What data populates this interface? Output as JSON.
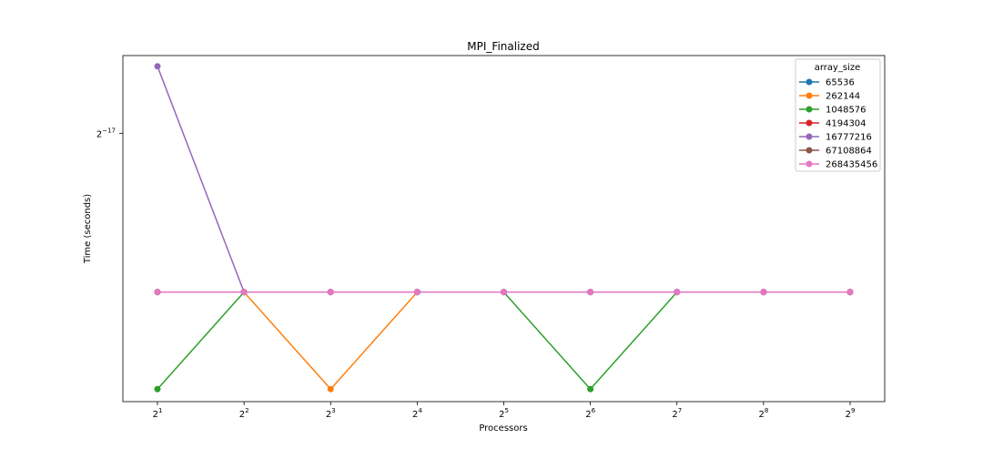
{
  "chart_data": {
    "type": "line",
    "title": "MPI_Finalized",
    "xlabel": "Processors",
    "ylabel": "Time (seconds)",
    "x": [
      2,
      4,
      8,
      16,
      32,
      64,
      128,
      256,
      512
    ],
    "x_tick_labels": [
      {
        "base": "2",
        "exp": "1"
      },
      {
        "base": "2",
        "exp": "2"
      },
      {
        "base": "2",
        "exp": "3"
      },
      {
        "base": "2",
        "exp": "4"
      },
      {
        "base": "2",
        "exp": "5"
      },
      {
        "base": "2",
        "exp": "6"
      },
      {
        "base": "2",
        "exp": "7"
      },
      {
        "base": "2",
        "exp": "8"
      },
      {
        "base": "2",
        "exp": "9"
      }
    ],
    "x_scale": "log2",
    "y_scale": "log2",
    "y_ticks": [
      {
        "value": 7.62939453125e-06,
        "base": "2",
        "exp": "−17"
      }
    ],
    "ylim": [
      3.45e-06,
      9.6e-06
    ],
    "grid": false,
    "legend": {
      "title": "array_size",
      "placement": "top-right"
    },
    "series": [
      {
        "name": "65536",
        "color": "#1f77b4",
        "values": [
          4.77e-06,
          4.77e-06,
          4.77e-06,
          4.77e-06,
          4.77e-06,
          4.77e-06,
          4.77e-06,
          4.77e-06,
          4.77e-06
        ]
      },
      {
        "name": "262144",
        "color": "#ff7f0e",
        "values": [
          4.77e-06,
          4.77e-06,
          3.58e-06,
          4.77e-06,
          4.77e-06,
          4.77e-06,
          4.77e-06,
          4.77e-06,
          4.77e-06
        ]
      },
      {
        "name": "1048576",
        "color": "#2ca02c",
        "values": [
          3.58e-06,
          4.77e-06,
          4.77e-06,
          4.77e-06,
          4.77e-06,
          3.58e-06,
          4.77e-06,
          4.77e-06,
          4.77e-06
        ]
      },
      {
        "name": "4194304",
        "color": "#d62728",
        "values": [
          4.77e-06,
          4.77e-06,
          4.77e-06,
          4.77e-06,
          4.77e-06,
          4.77e-06,
          4.77e-06,
          4.77e-06,
          4.77e-06
        ]
      },
      {
        "name": "16777216",
        "color": "#9467bd",
        "values": [
          9.3e-06,
          4.77e-06,
          4.77e-06,
          4.77e-06,
          4.77e-06,
          4.77e-06,
          4.77e-06,
          4.77e-06,
          4.77e-06
        ]
      },
      {
        "name": "67108864",
        "color": "#8c564b",
        "values": [
          4.77e-06,
          4.77e-06,
          4.77e-06,
          4.77e-06,
          4.77e-06,
          4.77e-06,
          4.77e-06,
          4.77e-06,
          4.77e-06
        ]
      },
      {
        "name": "268435456",
        "color": "#e377c2",
        "values": [
          4.77e-06,
          4.77e-06,
          4.77e-06,
          4.77e-06,
          4.77e-06,
          4.77e-06,
          4.77e-06,
          4.77e-06,
          4.77e-06
        ]
      }
    ]
  }
}
